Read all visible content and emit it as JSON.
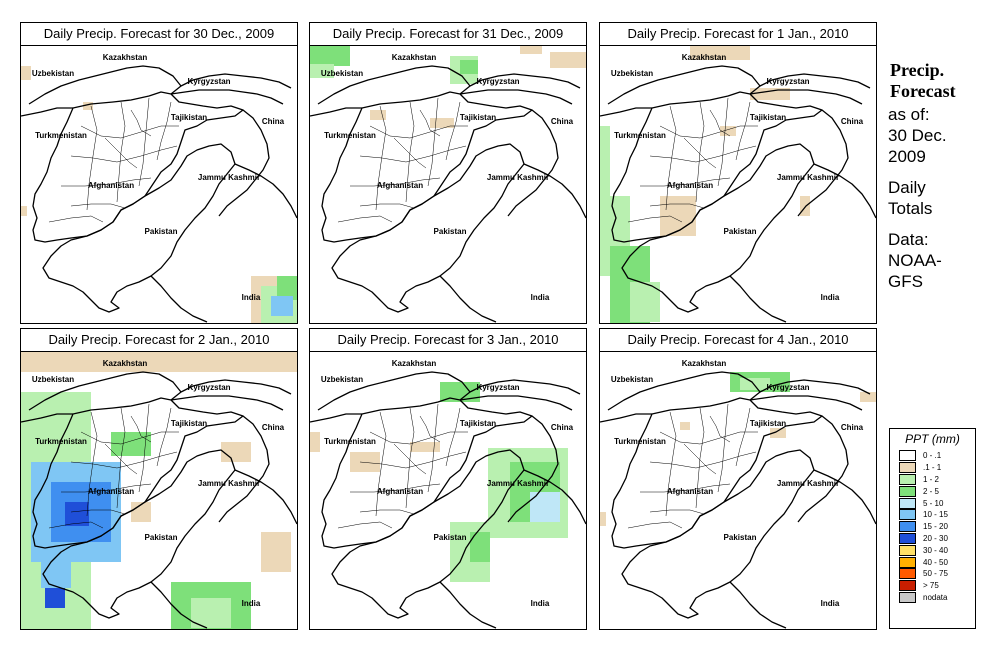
{
  "panels": [
    {
      "title": "Daily Precip. Forecast for  30 Dec., 2009"
    },
    {
      "title": "Daily Precip. Forecast for  31 Dec., 2009"
    },
    {
      "title": "Daily Precip. Forecast for  1 Jan., 2010"
    },
    {
      "title": "Daily Precip. Forecast for  2 Jan., 2010"
    },
    {
      "title": "Daily Precip. Forecast for  3 Jan., 2010"
    },
    {
      "title": "Daily Precip. Forecast for  4 Jan., 2010"
    }
  ],
  "map_labels": {
    "kazakhstan": "Kazakhstan",
    "uzbekistan": "Uzbekistan",
    "kyrgyzstan": "Kyrgyzstan",
    "tajikistan": "Tajikistan",
    "china": "China",
    "turkmenistan": "Turkmenistan",
    "afghanistan": "Afghanistan",
    "jammu_kashmir": "Jammu Kashmir",
    "pakistan": "Pakistan",
    "india": "India"
  },
  "sidebar": {
    "title_line1": "Precip.",
    "title_line2": "Forecast",
    "asof_line1": "as of:",
    "asof_line2": "30 Dec.",
    "asof_line3": "2009",
    "totals_line1": "Daily",
    "totals_line2": "Totals",
    "data_line1": "Data:",
    "data_line2": "NOAA-",
    "data_line3": "GFS"
  },
  "legend": {
    "title": "PPT (mm)",
    "items": [
      {
        "label": "0 - .1",
        "color": "#ffffff"
      },
      {
        "label": ".1 - 1",
        "color": "#ecd8b8"
      },
      {
        "label": "1 - 2",
        "color": "#b9f0b0"
      },
      {
        "label": "2 - 5",
        "color": "#7ee07a"
      },
      {
        "label": "5 - 10",
        "color": "#bfe7f7"
      },
      {
        "label": "10 - 15",
        "color": "#7fc6f4"
      },
      {
        "label": "15 - 20",
        "color": "#3f8ff0"
      },
      {
        "label": "20 - 30",
        "color": "#1f4fd8"
      },
      {
        "label": "30 - 40",
        "color": "#ffe066"
      },
      {
        "label": "40 - 50",
        "color": "#ffb000"
      },
      {
        "label": "50 - 75",
        "color": "#ff5a00"
      },
      {
        "label": "> 75",
        "color": "#c81e00"
      },
      {
        "label": "nodata",
        "color": "#c8c8c8"
      }
    ]
  }
}
